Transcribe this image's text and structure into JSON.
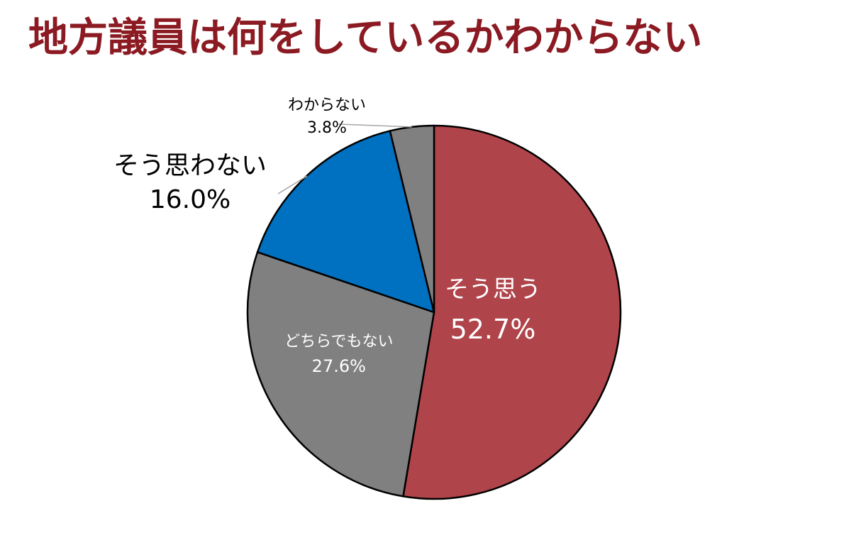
{
  "title": "地方議員は何をしているかわからない",
  "chart_data": {
    "type": "pie",
    "start_angle_deg": 0,
    "direction": "clockwise",
    "slices": [
      {
        "label": "そう思う",
        "value": 52.7,
        "value_text": "52.7%",
        "color": "#b0444b",
        "label_color": "#ffffff",
        "label_placement": "inside"
      },
      {
        "label": "どちらでもない",
        "value": 27.6,
        "value_text": "27.6%",
        "color": "#808080",
        "label_color": "#ffffff",
        "label_placement": "inside"
      },
      {
        "label": "そう思わない",
        "value": 16.0,
        "value_text": "16.0%",
        "color": "#0070c0",
        "label_color": "#000000",
        "label_placement": "outside-left"
      },
      {
        "label": "わからない",
        "value": 3.8,
        "value_text": "3.8%",
        "color": "#808080",
        "label_color": "#000000",
        "label_placement": "outside-top"
      }
    ],
    "border_color": "#000000",
    "leader_line_color": "#a6a6a6"
  }
}
